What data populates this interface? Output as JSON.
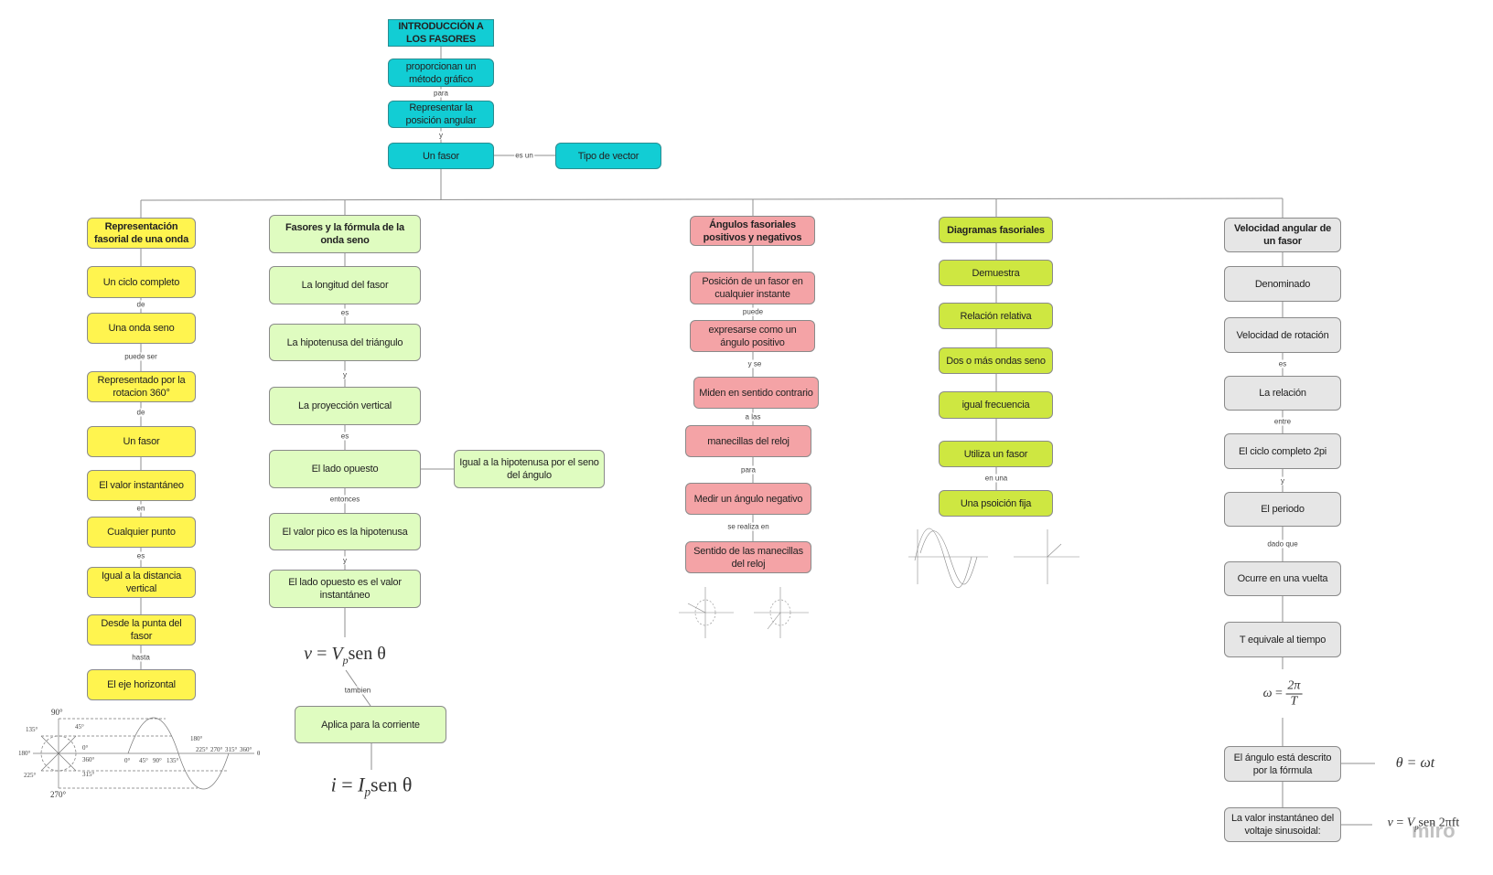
{
  "top": {
    "title": "INTRODUCCIÓN A LOS FASORES",
    "n1": "proporcionan un método gráfico",
    "e1": "para",
    "n2": "Representar la posición angular",
    "e2": "y",
    "n3": "Un fasor",
    "e3": "es un",
    "n4": "Tipo de vector"
  },
  "col_yellow": {
    "header": "Representación fasorial de una onda",
    "nodes": [
      "Un ciclo completo",
      "Una onda seno",
      "Representado por la rotacion 360°",
      "Un fasor",
      "El valor instantáneo",
      "Cualquier punto",
      "Igual a la distancia vertical",
      "Desde la punta del fasor",
      "El eje horizontal"
    ],
    "edges": [
      "de",
      "puede ser",
      "de",
      "en",
      "es",
      "hasta"
    ],
    "figure_labels": [
      "90°",
      "45°",
      "135°",
      "0°",
      "180°",
      "360°",
      "225°",
      "315°",
      "270°",
      "0°",
      "45°",
      "90°",
      "135°",
      "180°",
      "225°",
      "270°",
      "315°",
      "360°",
      "θ"
    ]
  },
  "col_lightgreen": {
    "header": "Fasores y la fórmula de la onda seno",
    "nodes": [
      "La longitud del fasor",
      "La hipotenusa del triángulo",
      "La proyección vertical",
      "El lado opuesto",
      "El valor pico es la hipotenusa",
      "El lado opuesto es el valor instantáneo",
      "Aplica para la corriente"
    ],
    "side": "Igual a la hipotenusa por el seno del ángulo",
    "edges": [
      "es",
      "y",
      "es",
      "entonces",
      "y",
      "tambien"
    ],
    "formula_v": {
      "lhs": "v",
      "eq": "=",
      "var": "V",
      "sub": "p",
      "rest": "sen θ"
    },
    "formula_i": {
      "lhs": "i",
      "eq": "=",
      "var": "I",
      "sub": "p",
      "rest": "sen θ"
    }
  },
  "col_pink": {
    "header": "Ángulos fasoriales positivos y negativos",
    "nodes": [
      "Posición de un fasor en cualquier instante",
      "expresarse como un ángulo positivo",
      "Miden en sentido contrario",
      "manecillas del reloj",
      "Medir un ángulo negativo",
      "Sentido de las manecillas del reloj"
    ],
    "edges": [
      "puede",
      "y se",
      "a las",
      "para",
      "se realiza en"
    ]
  },
  "col_lime": {
    "header": "Diagramas fasoriales",
    "nodes": [
      "Demuestra",
      "Relación relativa",
      "Dos o más ondas seno",
      "igual frecuencia",
      "Utiliza un fasor",
      "Una psoición fija"
    ],
    "edges": [
      "en una"
    ]
  },
  "col_gray": {
    "header": "Velocidad angular de un fasor",
    "nodes": [
      "Denominado",
      "Velocidad de rotación",
      "La relación",
      "El ciclo completo 2pi",
      "El periodo",
      "Ocurre en una vuelta",
      "T equivale al tiempo",
      "El ángulo está descrito por la fórmula",
      "La valor instantáneo del voltaje sinusoidal:"
    ],
    "edges": [
      "es",
      "entre",
      "y",
      "dado que"
    ],
    "formula_omega": {
      "lhs": "ω",
      "eq": "=",
      "num": "2π",
      "den": "T"
    },
    "formula_theta": "θ = ωt",
    "formula_v": {
      "lhs": "v",
      "eq": "=",
      "var": "V",
      "sub": "p",
      "rest": "sen 2πft"
    }
  },
  "watermark": "miro",
  "colors": {
    "cyan": "#12cdd4",
    "yellow": "#fff44f",
    "light_green": "#dffcc0",
    "pink": "#f4a3a6",
    "lime": "#cee741",
    "gray": "#e6e6e6"
  }
}
